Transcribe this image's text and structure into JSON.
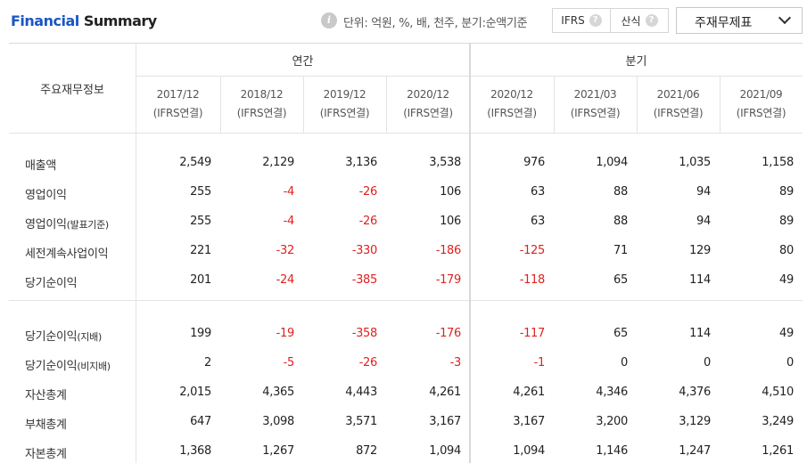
{
  "header": {
    "title_part1": "Financial",
    "title_part2": "Summary",
    "unit_text": "단위: 억원, %, 배, 천주, 분기:순액기준",
    "ifrs_label": "IFRS",
    "formula_label": "산식",
    "help_icon_char": "?",
    "info_icon_char": "i",
    "select_value": "주재무제표"
  },
  "table": {
    "row_header": "주요재무정보",
    "groups": [
      {
        "label": "연간"
      },
      {
        "label": "분기"
      }
    ],
    "columns": [
      {
        "period": "2017/12",
        "basis": "(IFRS연결)"
      },
      {
        "period": "2018/12",
        "basis": "(IFRS연결)"
      },
      {
        "period": "2019/12",
        "basis": "(IFRS연결)"
      },
      {
        "period": "2020/12",
        "basis": "(IFRS연결)"
      },
      {
        "period": "2020/12",
        "basis": "(IFRS연결)"
      },
      {
        "period": "2021/03",
        "basis": "(IFRS연결)"
      },
      {
        "period": "2021/06",
        "basis": "(IFRS연결)"
      },
      {
        "period": "2021/09",
        "basis": "(IFRS연결)"
      }
    ],
    "rows": [
      {
        "label": "매출액",
        "sub": "",
        "values": [
          "2,549",
          "2,129",
          "3,136",
          "3,538",
          "976",
          "1,094",
          "1,035",
          "1,158"
        ]
      },
      {
        "label": "영업이익",
        "sub": "",
        "values": [
          "255",
          "-4",
          "-26",
          "106",
          "63",
          "88",
          "94",
          "89"
        ]
      },
      {
        "label": "영업이익",
        "sub": "(발표기준)",
        "values": [
          "255",
          "-4",
          "-26",
          "106",
          "63",
          "88",
          "94",
          "89"
        ]
      },
      {
        "label": "세전계속사업이익",
        "sub": "",
        "values": [
          "221",
          "-32",
          "-330",
          "-186",
          "-125",
          "71",
          "129",
          "80"
        ]
      },
      {
        "label": "당기순이익",
        "sub": "",
        "values": [
          "201",
          "-24",
          "-385",
          "-179",
          "-118",
          "65",
          "114",
          "49"
        ]
      },
      {
        "label": "당기순이익",
        "sub": "(지배)",
        "values": [
          "199",
          "-19",
          "-358",
          "-176",
          "-117",
          "65",
          "114",
          "49"
        ]
      },
      {
        "label": "당기순이익",
        "sub": "(비지배)",
        "values": [
          "2",
          "-5",
          "-26",
          "-3",
          "-1",
          "0",
          "0",
          "0"
        ]
      },
      {
        "label": "자산총계",
        "sub": "",
        "values": [
          "2,015",
          "4,365",
          "4,443",
          "4,261",
          "4,261",
          "4,346",
          "4,376",
          "4,510"
        ]
      },
      {
        "label": "부채총계",
        "sub": "",
        "values": [
          "647",
          "3,098",
          "3,571",
          "3,167",
          "3,167",
          "3,200",
          "3,129",
          "3,249"
        ]
      },
      {
        "label": "자본총계",
        "sub": "",
        "values": [
          "1,368",
          "1,267",
          "872",
          "1,094",
          "1,094",
          "1,146",
          "1,247",
          "1,261"
        ]
      }
    ]
  },
  "colors": {
    "accent": "#1a56c2",
    "negative": "#e0201f"
  }
}
